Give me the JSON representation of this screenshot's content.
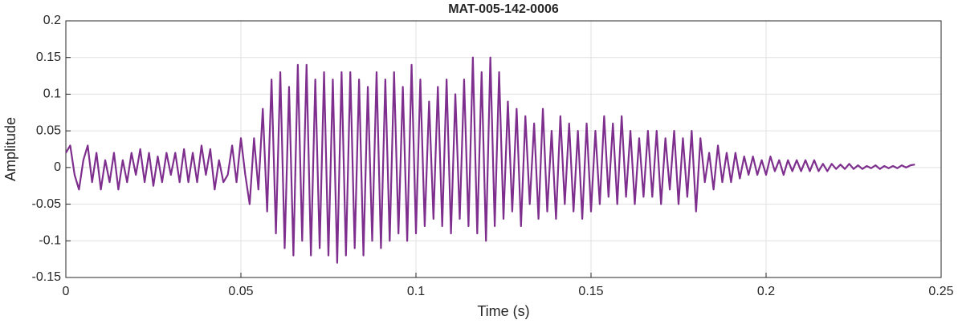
{
  "chart_data": {
    "type": "line",
    "title": "MAT-005-142-0006",
    "xlabel": "Time (s)",
    "ylabel": "Amplitude",
    "xlim": [
      0,
      0.25
    ],
    "ylim": [
      -0.15,
      0.2
    ],
    "xticks": [
      0,
      0.05,
      0.1,
      0.15,
      0.2,
      0.25
    ],
    "yticks": [
      -0.15,
      -0.1,
      -0.05,
      0,
      0.05,
      0.1,
      0.15,
      0.2
    ],
    "grid": true,
    "series": [
      {
        "name": "MAT-005-142-0006",
        "color": "#7e2f8e",
        "x": [
          0,
          0.00125,
          0.0025,
          0.00375,
          0.005,
          0.00625,
          0.0075,
          0.00875,
          0.01,
          0.01125,
          0.0125,
          0.01375,
          0.015,
          0.01625,
          0.0175,
          0.01875,
          0.02,
          0.02125,
          0.0225,
          0.02375,
          0.025,
          0.02625,
          0.0275,
          0.02875,
          0.03,
          0.03125,
          0.0325,
          0.03375,
          0.035,
          0.03625,
          0.0375,
          0.03875,
          0.04,
          0.04125,
          0.0425,
          0.04375,
          0.045,
          0.04625,
          0.0475,
          0.04875,
          0.05,
          0.05125,
          0.0525,
          0.05375,
          0.055,
          0.05625,
          0.0575,
          0.05875,
          0.06,
          0.06125,
          0.0625,
          0.06375,
          0.065,
          0.06625,
          0.0675,
          0.06875,
          0.07,
          0.07125,
          0.0725,
          0.07375,
          0.075,
          0.07625,
          0.0775,
          0.07875,
          0.08,
          0.08125,
          0.0825,
          0.08375,
          0.085,
          0.08625,
          0.0875,
          0.08875,
          0.09,
          0.09125,
          0.0925,
          0.09375,
          0.095,
          0.09625,
          0.0975,
          0.09875,
          0.1,
          0.10125,
          0.1025,
          0.10375,
          0.105,
          0.10625,
          0.1075,
          0.10875,
          0.11,
          0.11125,
          0.1125,
          0.11375,
          0.115,
          0.11625,
          0.1175,
          0.11875,
          0.12,
          0.12125,
          0.1225,
          0.12375,
          0.125,
          0.12625,
          0.1275,
          0.12875,
          0.13,
          0.13125,
          0.1325,
          0.13375,
          0.135,
          0.13625,
          0.1375,
          0.13875,
          0.14,
          0.14125,
          0.1425,
          0.14375,
          0.145,
          0.14625,
          0.1475,
          0.14875,
          0.15,
          0.15125,
          0.1525,
          0.15375,
          0.155,
          0.15625,
          0.1575,
          0.15875,
          0.16,
          0.16125,
          0.1625,
          0.16375,
          0.165,
          0.16625,
          0.1675,
          0.16875,
          0.17,
          0.17125,
          0.1725,
          0.17375,
          0.175,
          0.17625,
          0.1775,
          0.17875,
          0.18,
          0.18125,
          0.1825,
          0.18375,
          0.185,
          0.18625,
          0.1875,
          0.18875,
          0.19,
          0.19125,
          0.1925,
          0.19375,
          0.195,
          0.19625,
          0.1975,
          0.19875,
          0.2,
          0.20125,
          0.2025,
          0.20375,
          0.205,
          0.20625,
          0.2075,
          0.20875,
          0.21,
          0.21125,
          0.2125,
          0.21375,
          0.215,
          0.21625,
          0.2175,
          0.21875,
          0.22,
          0.22125,
          0.2225,
          0.22375,
          0.225,
          0.22625,
          0.2275,
          0.22875,
          0.23,
          0.23125,
          0.2325,
          0.23375,
          0.235,
          0.23625,
          0.2375,
          0.23875,
          0.24,
          0.24125,
          0.2425
        ],
        "values": [
          0.02,
          0.03,
          -0.01,
          -0.03,
          0.01,
          0.03,
          -0.02,
          0.02,
          -0.03,
          0.01,
          -0.02,
          0.02,
          -0.03,
          0.01,
          -0.02,
          0.02,
          -0.01,
          0.025,
          -0.02,
          0.02,
          -0.025,
          0.015,
          -0.02,
          0.02,
          -0.01,
          0.02,
          -0.02,
          0.025,
          -0.02,
          0.02,
          -0.02,
          0.03,
          -0.01,
          0.025,
          -0.03,
          0.01,
          -0.02,
          -0.01,
          0.03,
          -0.02,
          0.04,
          -0.01,
          -0.05,
          0.04,
          -0.03,
          0.08,
          -0.06,
          0.12,
          -0.09,
          0.13,
          -0.11,
          0.11,
          -0.12,
          0.14,
          -0.1,
          0.14,
          -0.12,
          0.12,
          -0.11,
          0.13,
          -0.12,
          0.12,
          -0.13,
          0.13,
          -0.12,
          0.13,
          -0.11,
          0.12,
          -0.12,
          0.11,
          -0.1,
          0.13,
          -0.11,
          0.12,
          -0.1,
          0.13,
          -0.09,
          0.11,
          -0.1,
          0.14,
          -0.09,
          0.12,
          -0.08,
          0.09,
          -0.07,
          0.11,
          -0.08,
          0.12,
          -0.09,
          0.1,
          -0.07,
          0.12,
          -0.08,
          0.15,
          -0.09,
          0.13,
          -0.1,
          0.15,
          -0.08,
          0.13,
          -0.07,
          0.09,
          -0.06,
          0.08,
          -0.08,
          0.07,
          -0.05,
          0.06,
          -0.07,
          0.08,
          -0.06,
          0.05,
          -0.07,
          0.07,
          -0.05,
          0.06,
          -0.06,
          0.05,
          -0.07,
          0.06,
          -0.06,
          0.05,
          -0.05,
          0.07,
          -0.04,
          0.06,
          -0.05,
          0.07,
          -0.04,
          0.05,
          -0.05,
          0.04,
          -0.04,
          0.05,
          -0.04,
          0.05,
          -0.05,
          0.04,
          -0.03,
          0.05,
          -0.05,
          0.04,
          -0.04,
          0.05,
          -0.06,
          0.04,
          -0.02,
          0.02,
          -0.03,
          0.03,
          -0.02,
          0.02,
          -0.02,
          0.02,
          -0.015,
          0.015,
          -0.01,
          0.015,
          -0.01,
          0.01,
          -0.01,
          0.015,
          -0.005,
          0.01,
          -0.01,
          0.01,
          -0.005,
          0.01,
          -0.005,
          0.01,
          -0.005,
          0.01,
          -0.005,
          0.005,
          -0.005,
          0.005,
          -0.002,
          0.004,
          -0.002,
          0.005,
          -0.002,
          0.003,
          -0.002,
          0.002,
          -0.001,
          0.003,
          -0.002,
          0.002,
          -0.001,
          0.002,
          -0.001,
          0.003,
          0,
          0.003,
          0.004
        ]
      }
    ]
  }
}
